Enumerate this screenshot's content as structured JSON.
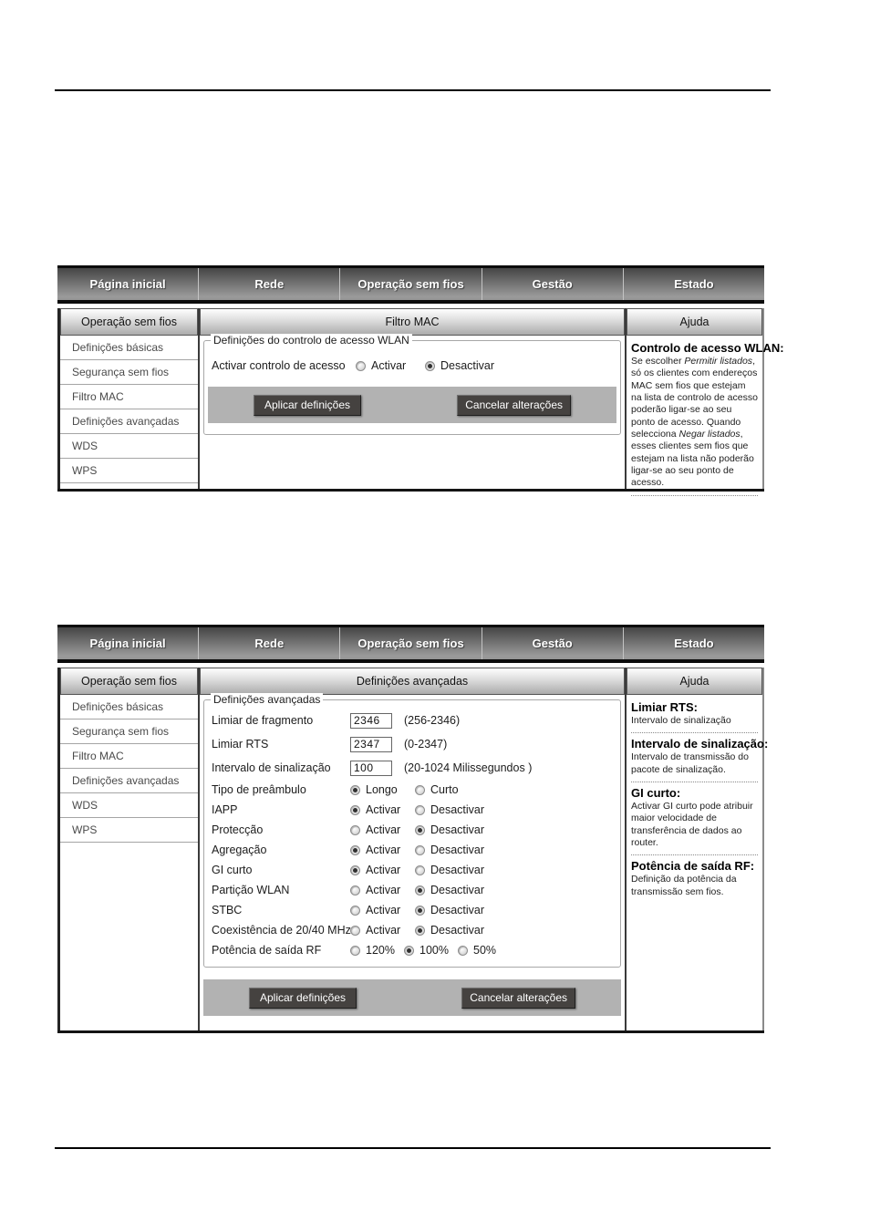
{
  "colors": {
    "button_bg": "#454240",
    "button_text": "#ffffff",
    "bar_bg": "#b2b2b2",
    "nav_text": "#ffffff"
  },
  "nav_items": [
    "Página inicial",
    "Rede",
    "Operação sem fios",
    "Gestão",
    "Estado"
  ],
  "sidebar": {
    "title": "Operação sem fios",
    "items": [
      "Definições básicas",
      "Segurança sem fios",
      "Filtro MAC",
      "Definições avançadas",
      "WDS",
      "WPS"
    ]
  },
  "buttons": {
    "apply": "Aplicar definições",
    "cancel": "Cancelar alterações"
  },
  "shot1": {
    "panel_title": "Filtro MAC",
    "help_title": "Ajuda",
    "legend": "Definições do controlo de acesso WLAN",
    "access_row": {
      "label": "Activar controlo de acesso",
      "options": [
        "Activar",
        "Desactivar"
      ],
      "selected": "Desactivar"
    },
    "help": {
      "heading": "Controlo de acesso WLAN:",
      "segments": [
        {
          "text": "Se escolher ",
          "italic": false
        },
        {
          "text": "Permitir listados",
          "italic": true
        },
        {
          "text": ", só os clientes com endereços MAC sem fios que estejam na lista de controlo de acesso poderão ligar-se ao seu ponto de acesso. Quando selecciona ",
          "italic": false
        },
        {
          "text": "Negar listados",
          "italic": true
        },
        {
          "text": ", esses clientes sem fios que estejam na lista não poderão ligar-se ao seu ponto de acesso.",
          "italic": false
        }
      ]
    }
  },
  "shot2": {
    "panel_title": "Definições avançadas",
    "help_title": "Ajuda",
    "legend": "Definições avançadas",
    "rows": [
      {
        "label": "Limiar de fragmento",
        "type": "input",
        "value": "2346",
        "hint": "(256-2346)"
      },
      {
        "label": "Limiar RTS",
        "type": "input",
        "value": "2347",
        "hint": "(0-2347)"
      },
      {
        "label": "Intervalo de sinalização",
        "type": "input",
        "value": "100",
        "hint": "(20-1024 Milissegundos )"
      },
      {
        "label": "Tipo de preâmbulo",
        "type": "radio",
        "options": [
          "Longo",
          "Curto"
        ],
        "selected": "Longo"
      },
      {
        "label": "IAPP",
        "type": "radio",
        "options": [
          "Activar",
          "Desactivar"
        ],
        "selected": "Activar"
      },
      {
        "label": "Protecção",
        "type": "radio",
        "options": [
          "Activar",
          "Desactivar"
        ],
        "selected": "Desactivar"
      },
      {
        "label": "Agregação",
        "type": "radio",
        "options": [
          "Activar",
          "Desactivar"
        ],
        "selected": "Activar"
      },
      {
        "label": "GI curto",
        "type": "radio",
        "options": [
          "Activar",
          "Desactivar"
        ],
        "selected": "Activar"
      },
      {
        "label": "Partição WLAN",
        "type": "radio",
        "options": [
          "Activar",
          "Desactivar"
        ],
        "selected": "Desactivar"
      },
      {
        "label": "STBC",
        "type": "radio",
        "options": [
          "Activar",
          "Desactivar"
        ],
        "selected": "Desactivar"
      },
      {
        "label": "Coexistência de 20/40 MHz",
        "type": "radio",
        "options": [
          "Activar",
          "Desactivar"
        ],
        "selected": "Desactivar"
      },
      {
        "label": "Potência de saída RF",
        "type": "radio",
        "options": [
          "120%",
          "100%",
          "50%"
        ],
        "selected": "100%"
      }
    ],
    "help_sections": [
      {
        "heading": "Limiar RTS:",
        "body": "Intervalo de sinalização"
      },
      {
        "heading": "Intervalo de sinalização:",
        "body": "Intervalo de transmissão do pacote de sinalização."
      },
      {
        "heading": "GI curto:",
        "body": "Activar GI curto pode atribuir maior velocidade de transferência de dados ao router."
      },
      {
        "heading": "Potência de saída RF:",
        "body": "Definição da potência da transmissão sem fios."
      }
    ]
  }
}
